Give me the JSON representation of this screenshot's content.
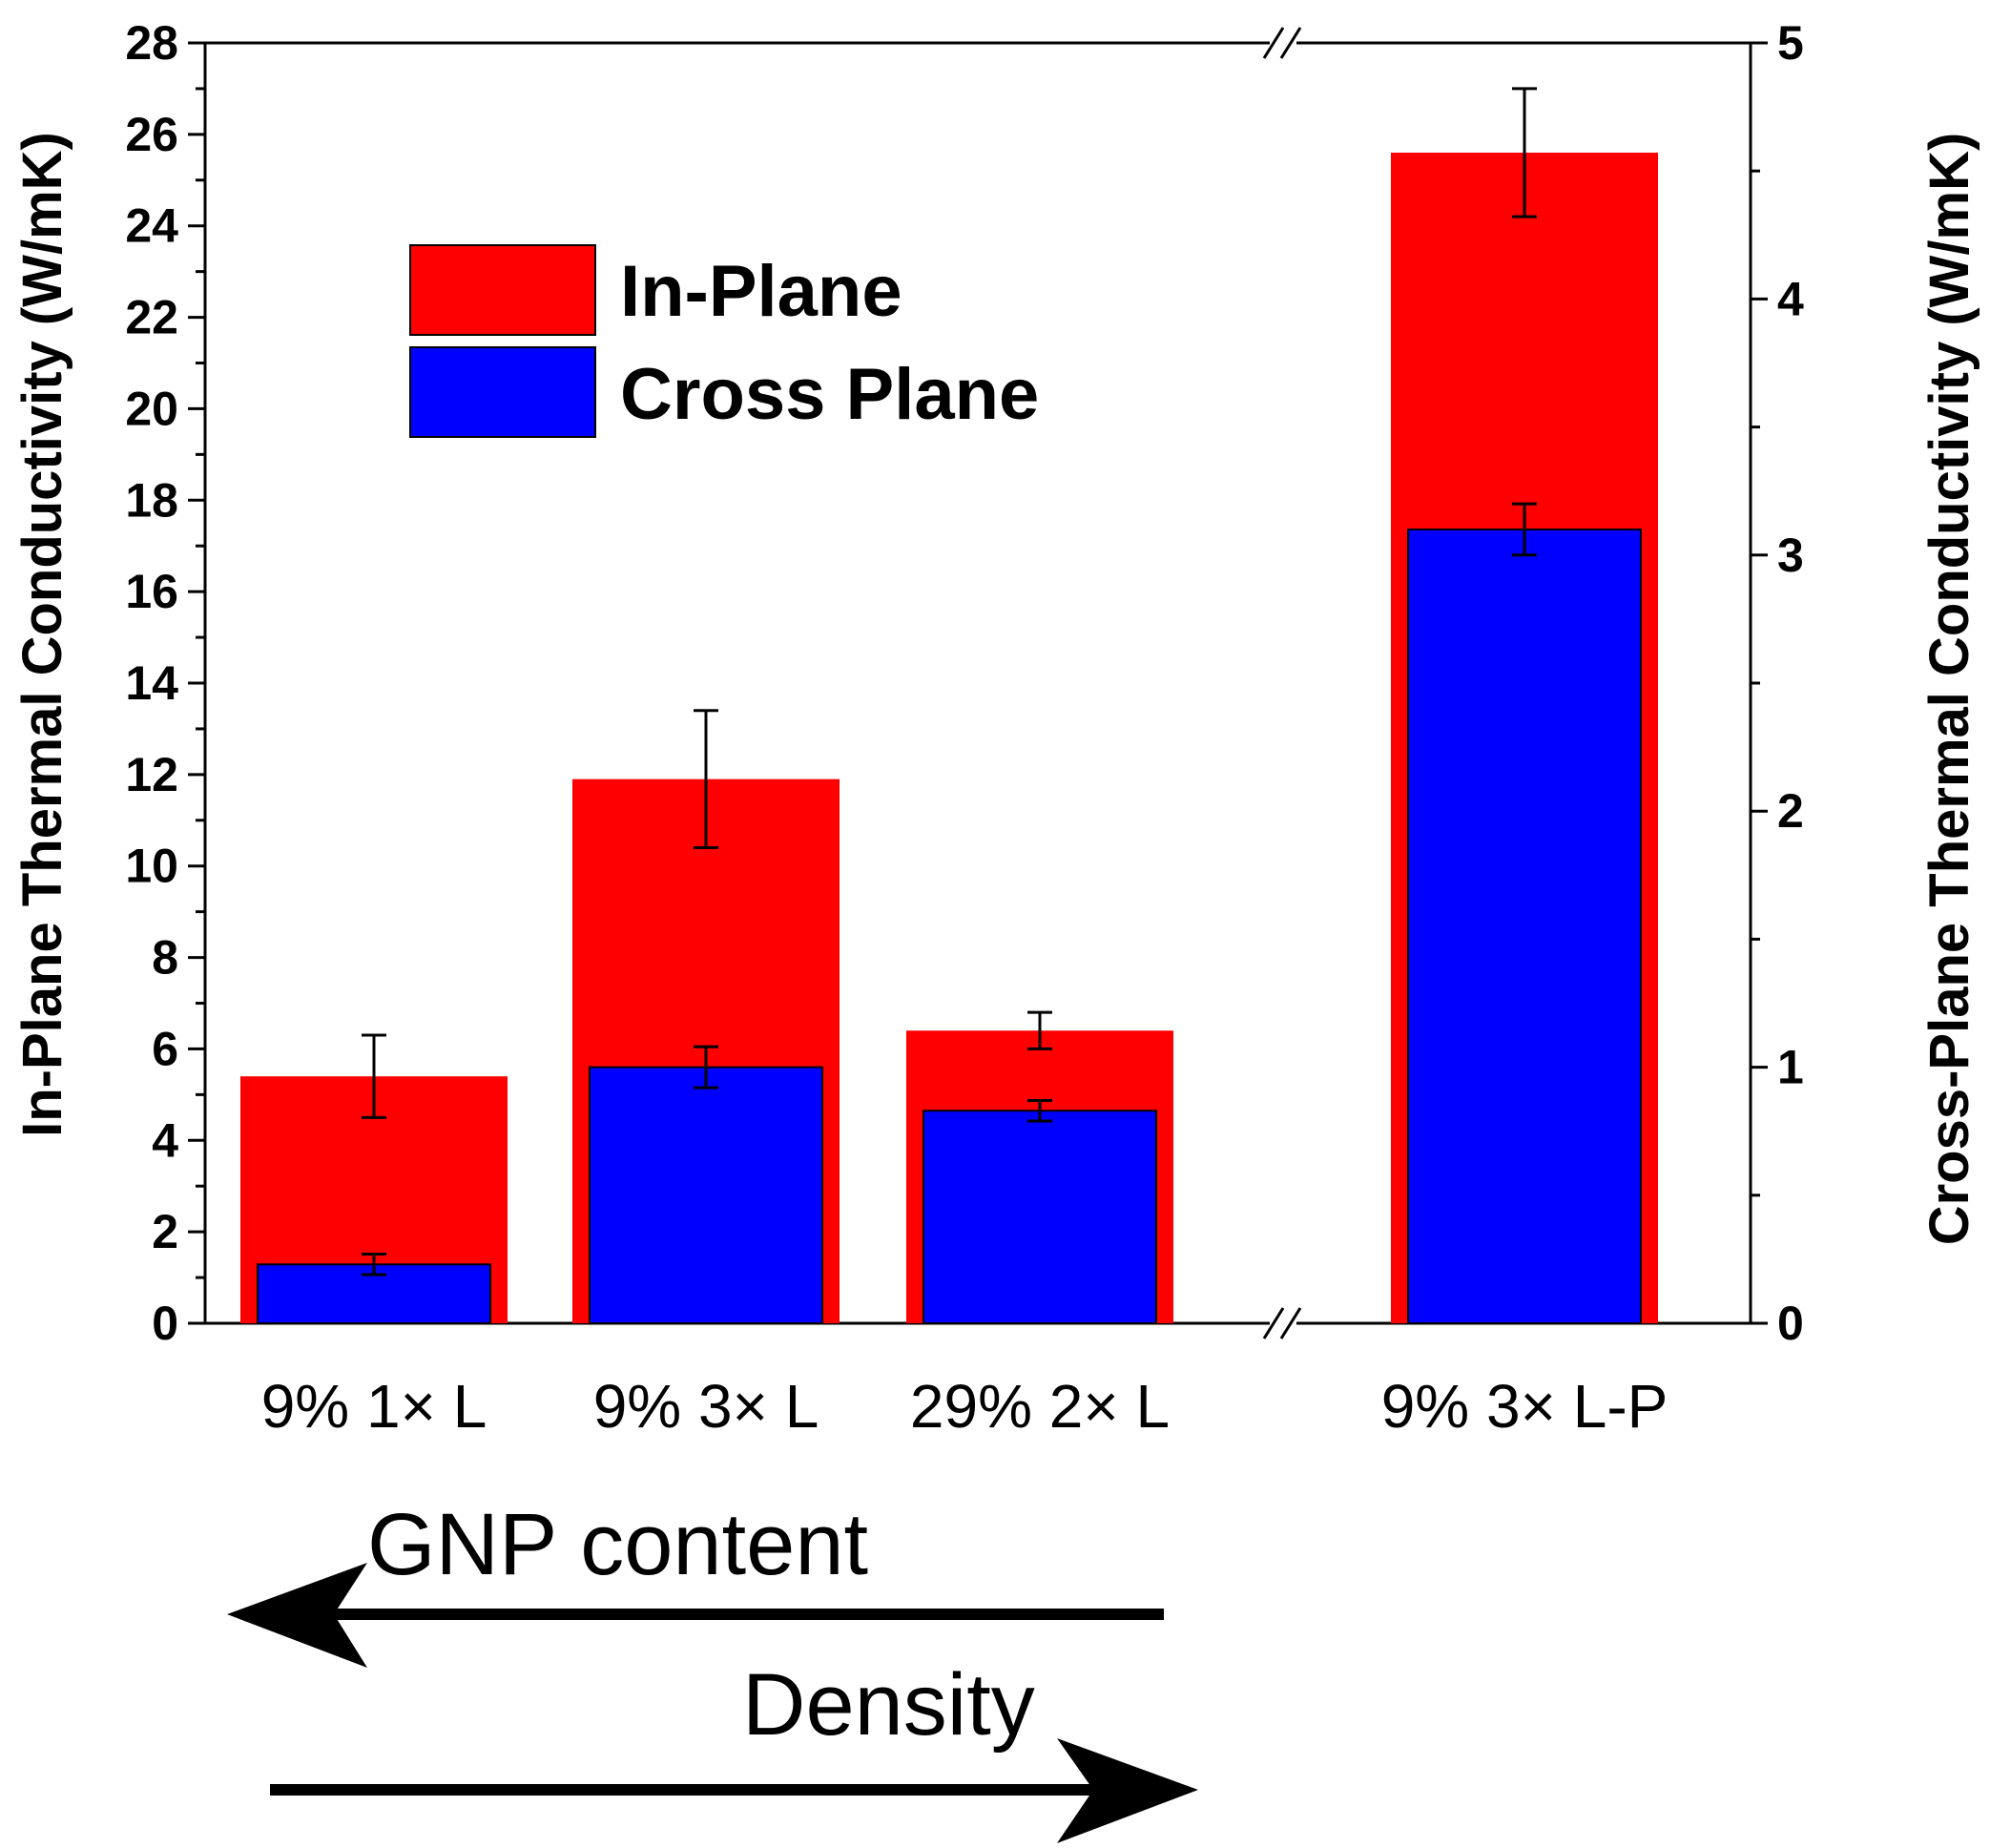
{
  "chart_data": {
    "type": "bar",
    "categories": [
      "9% 1× L",
      "9% 3× L",
      "29% 2× L",
      "9% 3× L-P"
    ],
    "series": [
      {
        "name": "In-Plane",
        "axis": "left",
        "color": "#ff0000",
        "values": [
          5.4,
          11.9,
          6.4,
          25.6
        ],
        "errors": [
          0.9,
          1.5,
          0.4,
          1.4
        ]
      },
      {
        "name": "Cross Plane",
        "axis": "right",
        "color": "#0000ff",
        "values": [
          0.23,
          1.0,
          0.83,
          3.1
        ],
        "errors": [
          0.04,
          0.08,
          0.04,
          0.1
        ]
      }
    ],
    "ylabel": "In-Plane Thermal Conductivity (W/mK)",
    "y2label": "Cross-Plane Thermal Conductivity (W/mK)",
    "ylim": [
      0,
      28
    ],
    "y2lim": [
      0,
      5
    ],
    "yticks": [
      "0",
      "2",
      "4",
      "6",
      "8",
      "10",
      "12",
      "14",
      "16",
      "18",
      "20",
      "22",
      "24",
      "26",
      "28"
    ],
    "y2ticks": [
      "0",
      "1",
      "2",
      "3",
      "4",
      "5"
    ],
    "axis_break": "between 3rd and 4th category",
    "legend_position": "upper-left",
    "annotations": [
      {
        "text": "GNP content",
        "direction": "left"
      },
      {
        "text": "Density",
        "direction": "right"
      }
    ]
  }
}
